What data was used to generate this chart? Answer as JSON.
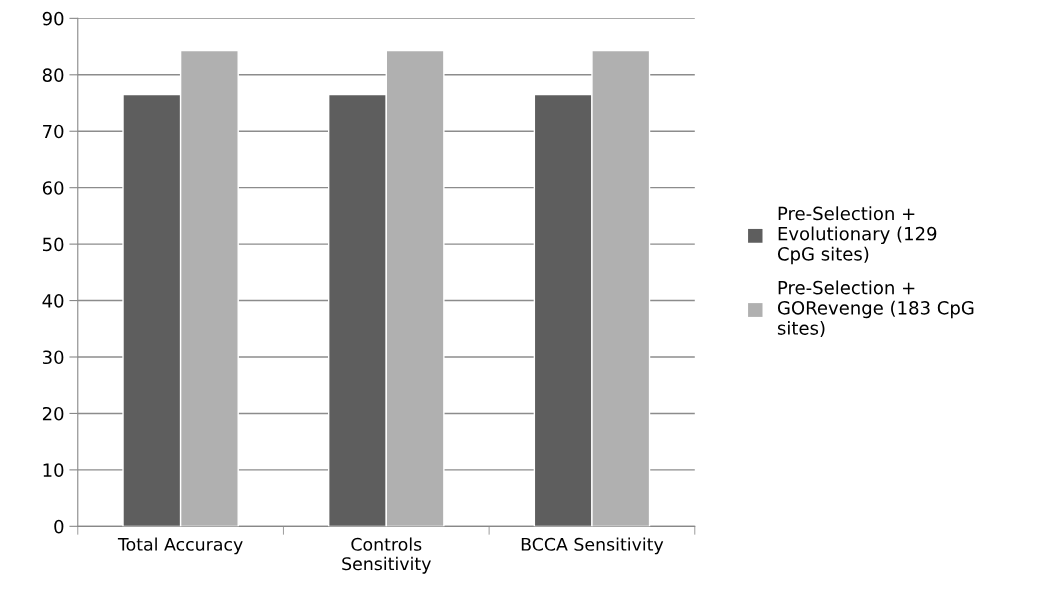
{
  "chart_data": {
    "type": "bar",
    "categories": [
      "Total Accuracy",
      "Controls Sensitivity",
      "BCCA Sensitivity"
    ],
    "series": [
      {
        "name": "Pre-Selection + Evolutionary (129 CpG sites)",
        "color": "#5e5e5e",
        "values": [
          76.5,
          76.5,
          76.5
        ]
      },
      {
        "name": "Pre-Selection + GORevenge (183 CpG sites)",
        "color": "#b0b0b0",
        "values": [
          84.3,
          84.3,
          84.3
        ]
      }
    ],
    "ylim": [
      0,
      90
    ],
    "yticks": [
      0,
      10,
      20,
      30,
      40,
      50,
      60,
      70,
      80,
      90
    ],
    "grid": "y",
    "legend": "right"
  }
}
